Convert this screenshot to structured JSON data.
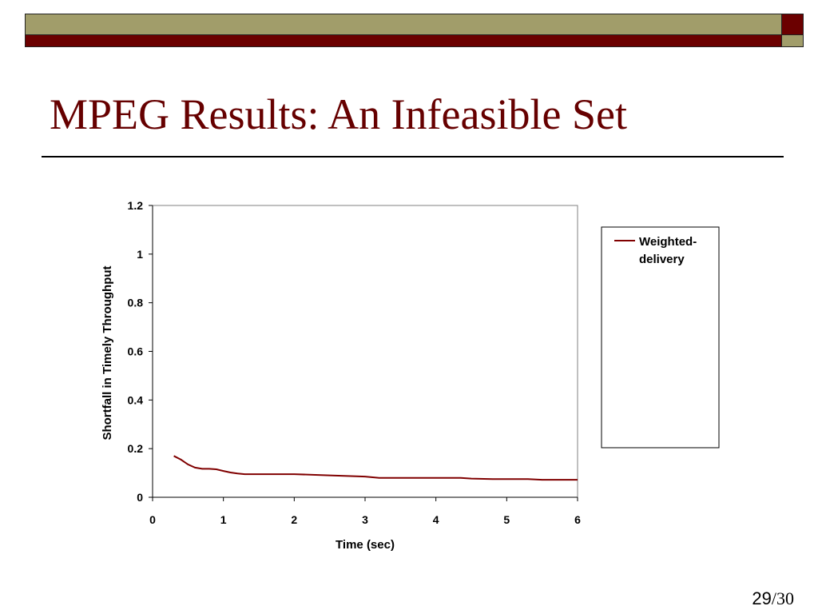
{
  "slide": {
    "title": "MPEG Results: An Infeasible Set",
    "page_current": "29",
    "page_total": "/30"
  },
  "colors": {
    "banner_olive": "#a19d6a",
    "banner_maroon": "#6b0000",
    "title": "#660000",
    "series": "#800000"
  },
  "chart_data": {
    "type": "line",
    "xlabel": "Time (sec)",
    "ylabel": "Shortfall in Timely Throughput",
    "xlim": [
      0,
      6
    ],
    "ylim": [
      0,
      1.2
    ],
    "x_ticks": [
      "0",
      "1",
      "2",
      "3",
      "4",
      "5",
      "6"
    ],
    "y_ticks": [
      "0",
      "0.2",
      "0.4",
      "0.6",
      "0.8",
      "1",
      "1.2"
    ],
    "grid": false,
    "legend": "right",
    "series": [
      {
        "name": "Weighted-delivery",
        "x": [
          0.3,
          0.4,
          0.5,
          0.6,
          0.7,
          0.8,
          0.9,
          1.0,
          1.1,
          1.2,
          1.3,
          1.5,
          2.0,
          2.5,
          3.0,
          3.2,
          3.5,
          4.0,
          4.35,
          4.5,
          4.8,
          5.0,
          5.3,
          5.5,
          6.0
        ],
        "y": [
          0.17,
          0.155,
          0.135,
          0.122,
          0.117,
          0.117,
          0.115,
          0.108,
          0.102,
          0.098,
          0.095,
          0.095,
          0.095,
          0.09,
          0.085,
          0.08,
          0.08,
          0.08,
          0.08,
          0.077,
          0.075,
          0.075,
          0.075,
          0.072,
          0.072
        ]
      }
    ]
  }
}
